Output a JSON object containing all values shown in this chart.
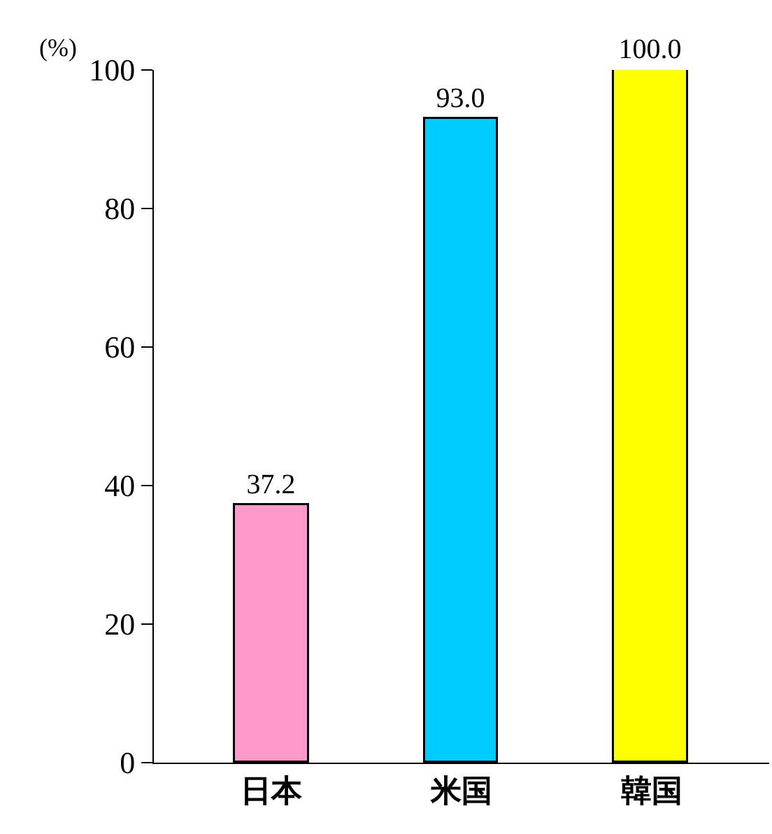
{
  "chart_data": {
    "type": "bar",
    "ylabel": "(%)",
    "categories": [
      "日本",
      "米国",
      "韓国"
    ],
    "values": [
      37.2,
      93.0,
      100.0
    ],
    "colors": [
      "#ff99cc",
      "#00ccff",
      "#ffff00"
    ],
    "value_labels": [
      "37.2",
      "93.0",
      "100.0"
    ],
    "ylim": [
      0,
      100
    ],
    "yticks": [
      0,
      20,
      40,
      60,
      80,
      100
    ]
  }
}
